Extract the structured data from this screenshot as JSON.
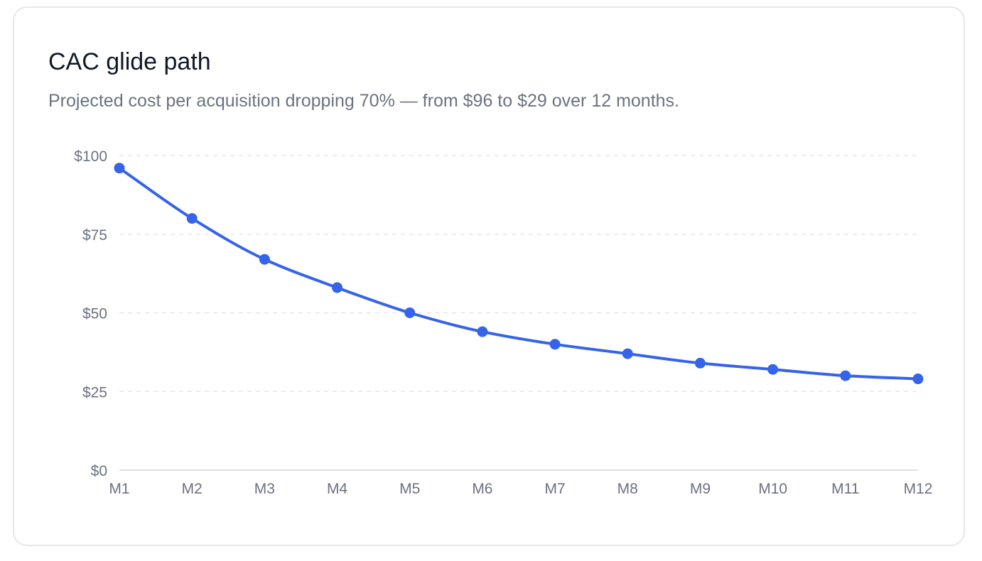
{
  "card": {
    "title": "CAC glide path",
    "subtitle": "Projected cost per acquisition dropping 70% — from $96 to $29 over 12 months."
  },
  "colors": {
    "line": "#3563e9",
    "grid": "#e5e7eb",
    "axis": "#d1d5db",
    "tick_text": "#6b7280"
  },
  "chart_data": {
    "type": "line",
    "title": "CAC glide path",
    "subtitle": "Projected cost per acquisition dropping 70% — from $96 to $29 over 12 months.",
    "xlabel": "",
    "ylabel": "",
    "categories": [
      "M1",
      "M2",
      "M3",
      "M4",
      "M5",
      "M6",
      "M7",
      "M8",
      "M9",
      "M10",
      "M11",
      "M12"
    ],
    "series": [
      {
        "values": [
          96,
          80,
          67,
          58,
          50,
          44,
          40,
          37,
          34,
          32,
          30,
          29
        ]
      }
    ],
    "ylim": [
      0,
      100
    ],
    "yticks": [
      0,
      25,
      50,
      75,
      100
    ],
    "ytick_labels": [
      "$0",
      "$25",
      "$50",
      "$75",
      "$100"
    ],
    "grid": true,
    "grid_style": "dashed",
    "smooth": true,
    "markers": true,
    "legend": "none"
  }
}
